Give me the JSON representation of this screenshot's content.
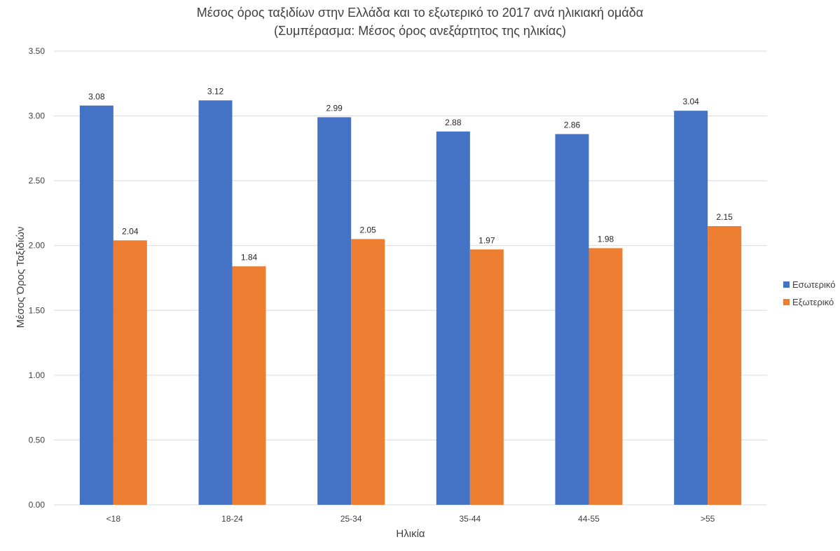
{
  "chart_data": {
    "type": "bar",
    "title": "Μέσος όρος ταξιδίων στην Ελλάδα και το εξωτερικό το 2017 ανά ηλικιακή ομάδα",
    "subtitle": "(Συμπέρασμα: Μέσος όρος ανεξάρτητος της ηλικίας)",
    "xlabel": "Ηλικία",
    "ylabel": "Μέσος Όρος Ταξιδιών",
    "categories": [
      "<18",
      "18-24",
      "25-34",
      "35-44",
      "44-55",
      ">55"
    ],
    "series": [
      {
        "name": "Εσωτερικό",
        "color": "#4472C4",
        "values": [
          3.08,
          3.12,
          2.99,
          2.88,
          2.86,
          3.04
        ]
      },
      {
        "name": "Εξωτερικό",
        "color": "#ED7D31",
        "values": [
          2.04,
          1.84,
          2.05,
          1.97,
          1.98,
          2.15
        ]
      }
    ],
    "ylim": [
      0,
      3.5
    ],
    "yticks": [
      "0.00",
      "0.50",
      "1.00",
      "1.50",
      "2.00",
      "2.50",
      "3.00",
      "3.50"
    ],
    "grid": true,
    "legend": "right"
  }
}
